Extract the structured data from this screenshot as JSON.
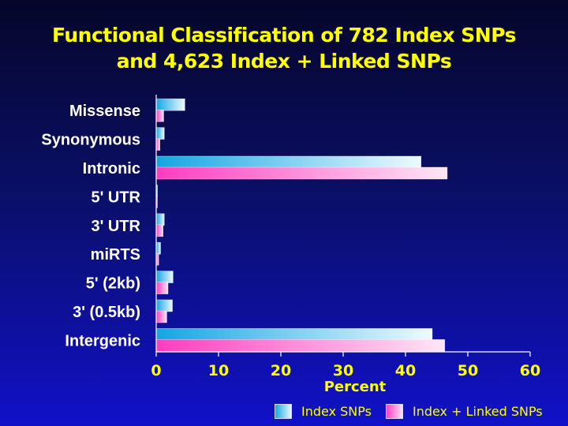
{
  "chart_data": {
    "type": "bar",
    "orientation": "horizontal",
    "title_lines": [
      "Functional Classification of 782 Index SNPs",
      "and 4,623 Index + Linked SNPs"
    ],
    "categories": [
      "Missense",
      "Synonymous",
      "Intronic",
      "5' UTR",
      "3' UTR",
      "miRTS",
      "5' (2kb)",
      "3' (0.5kb)",
      "Intergenic"
    ],
    "series": [
      {
        "name": "Index SNPs",
        "values": [
          4.6,
          1.3,
          42.5,
          0.2,
          1.3,
          0.7,
          2.7,
          2.6,
          44.3
        ],
        "color": "#1aa8e0"
      },
      {
        "name": "Index + Linked SNPs",
        "values": [
          1.2,
          0.6,
          46.7,
          0.1,
          1.1,
          0.4,
          1.9,
          1.7,
          46.3
        ],
        "color": "#ff40c0"
      }
    ],
    "xlabel": "Percent",
    "xlim": [
      0,
      60
    ],
    "xticks": [
      "0",
      "10",
      "20",
      "30",
      "40",
      "50",
      "60"
    ],
    "legend_position": "bottom-right",
    "grid": false
  },
  "colors": {
    "background": "#0a0f66",
    "title": "#ffff00",
    "category_text": "#ffffff",
    "tick_text": "#ffff00"
  }
}
